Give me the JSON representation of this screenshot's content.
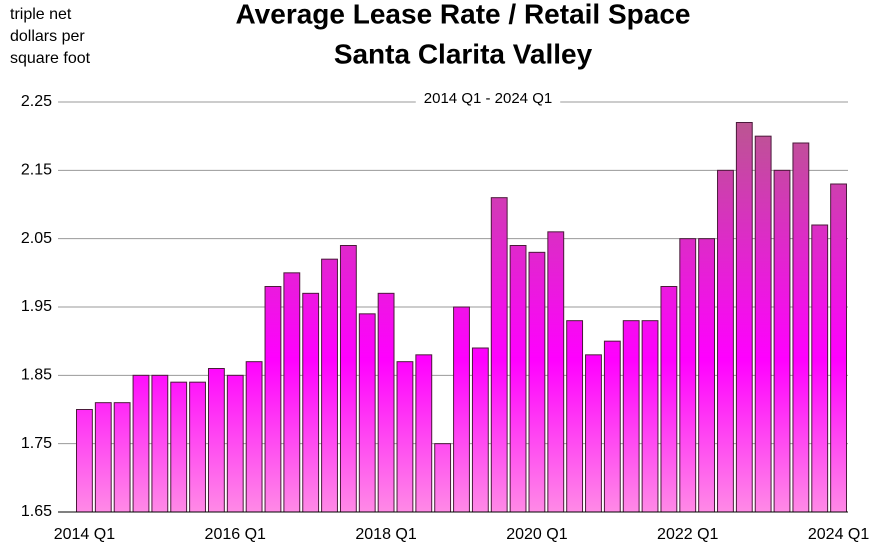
{
  "chart_data": {
    "type": "bar",
    "title": [
      "Average Lease Rate / Retail Space",
      "Santa Clarita Valley"
    ],
    "subtitle": "2014 Q1 - 2024 Q1",
    "y_label": "triple net dollars per square foot",
    "categories": [
      "2014 Q1",
      null,
      null,
      null,
      null,
      null,
      null,
      null,
      "2016 Q1",
      null,
      null,
      null,
      null,
      null,
      null,
      null,
      "2018 Q1",
      null,
      null,
      null,
      null,
      null,
      null,
      null,
      "2020 Q1",
      null,
      null,
      null,
      null,
      null,
      null,
      null,
      "2022 Q1",
      null,
      null,
      null,
      null,
      null,
      null,
      null,
      "2024 Q1"
    ],
    "values": [
      1.8,
      1.81,
      1.81,
      1.85,
      1.85,
      1.84,
      1.84,
      1.86,
      1.85,
      1.87,
      1.98,
      2.0,
      1.97,
      2.02,
      2.04,
      1.94,
      1.97,
      1.87,
      1.88,
      1.75,
      1.95,
      1.89,
      2.11,
      2.04,
      2.03,
      2.06,
      1.93,
      1.88,
      1.9,
      1.93,
      1.93,
      1.98,
      2.05,
      2.05,
      2.15,
      2.22,
      2.2,
      2.15,
      2.19,
      2.07,
      2.13
    ],
    "color": "#ff00ff",
    "ylim": [
      1.65,
      2.25
    ],
    "yticks": [
      1.65,
      1.75,
      1.85,
      1.95,
      2.05,
      2.15,
      2.25
    ],
    "grid": true
  }
}
